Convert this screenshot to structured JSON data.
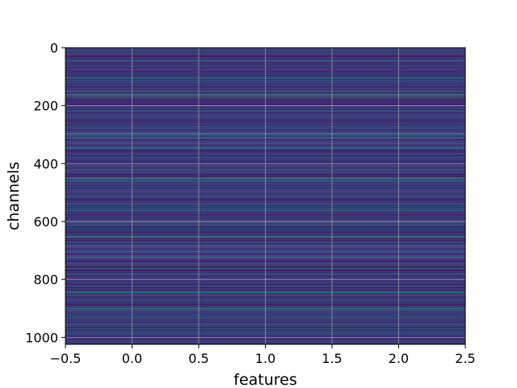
{
  "chart_data": {
    "type": "heatmap",
    "title": "",
    "xlabel": "features",
    "ylabel": "channels",
    "xlim": [
      -0.5,
      2.5
    ],
    "ylim": [
      1024,
      0
    ],
    "y_inverted": true,
    "grid": true,
    "n_rows": 1024,
    "n_cols": 3,
    "x_ticks": [
      {
        "value": -0.5,
        "label": "−0.5"
      },
      {
        "value": 0.0,
        "label": "0.0"
      },
      {
        "value": 0.5,
        "label": "0.5"
      },
      {
        "value": 1.0,
        "label": "1.0"
      },
      {
        "value": 1.5,
        "label": "1.5"
      },
      {
        "value": 2.0,
        "label": "2.0"
      },
      {
        "value": 2.5,
        "label": "2.5"
      }
    ],
    "y_ticks": [
      {
        "value": 0,
        "label": "0"
      },
      {
        "value": 200,
        "label": "200"
      },
      {
        "value": 400,
        "label": "400"
      },
      {
        "value": 600,
        "label": "600"
      },
      {
        "value": 800,
        "label": "800"
      },
      {
        "value": 1000,
        "label": "1000"
      }
    ],
    "colormap": "viridis",
    "colors": {
      "grid": "#b0b0b0",
      "axes": "#000000",
      "colormap_stops": [
        "#440154",
        "#3b528b",
        "#21918c",
        "#5ec962",
        "#fde725"
      ]
    }
  }
}
